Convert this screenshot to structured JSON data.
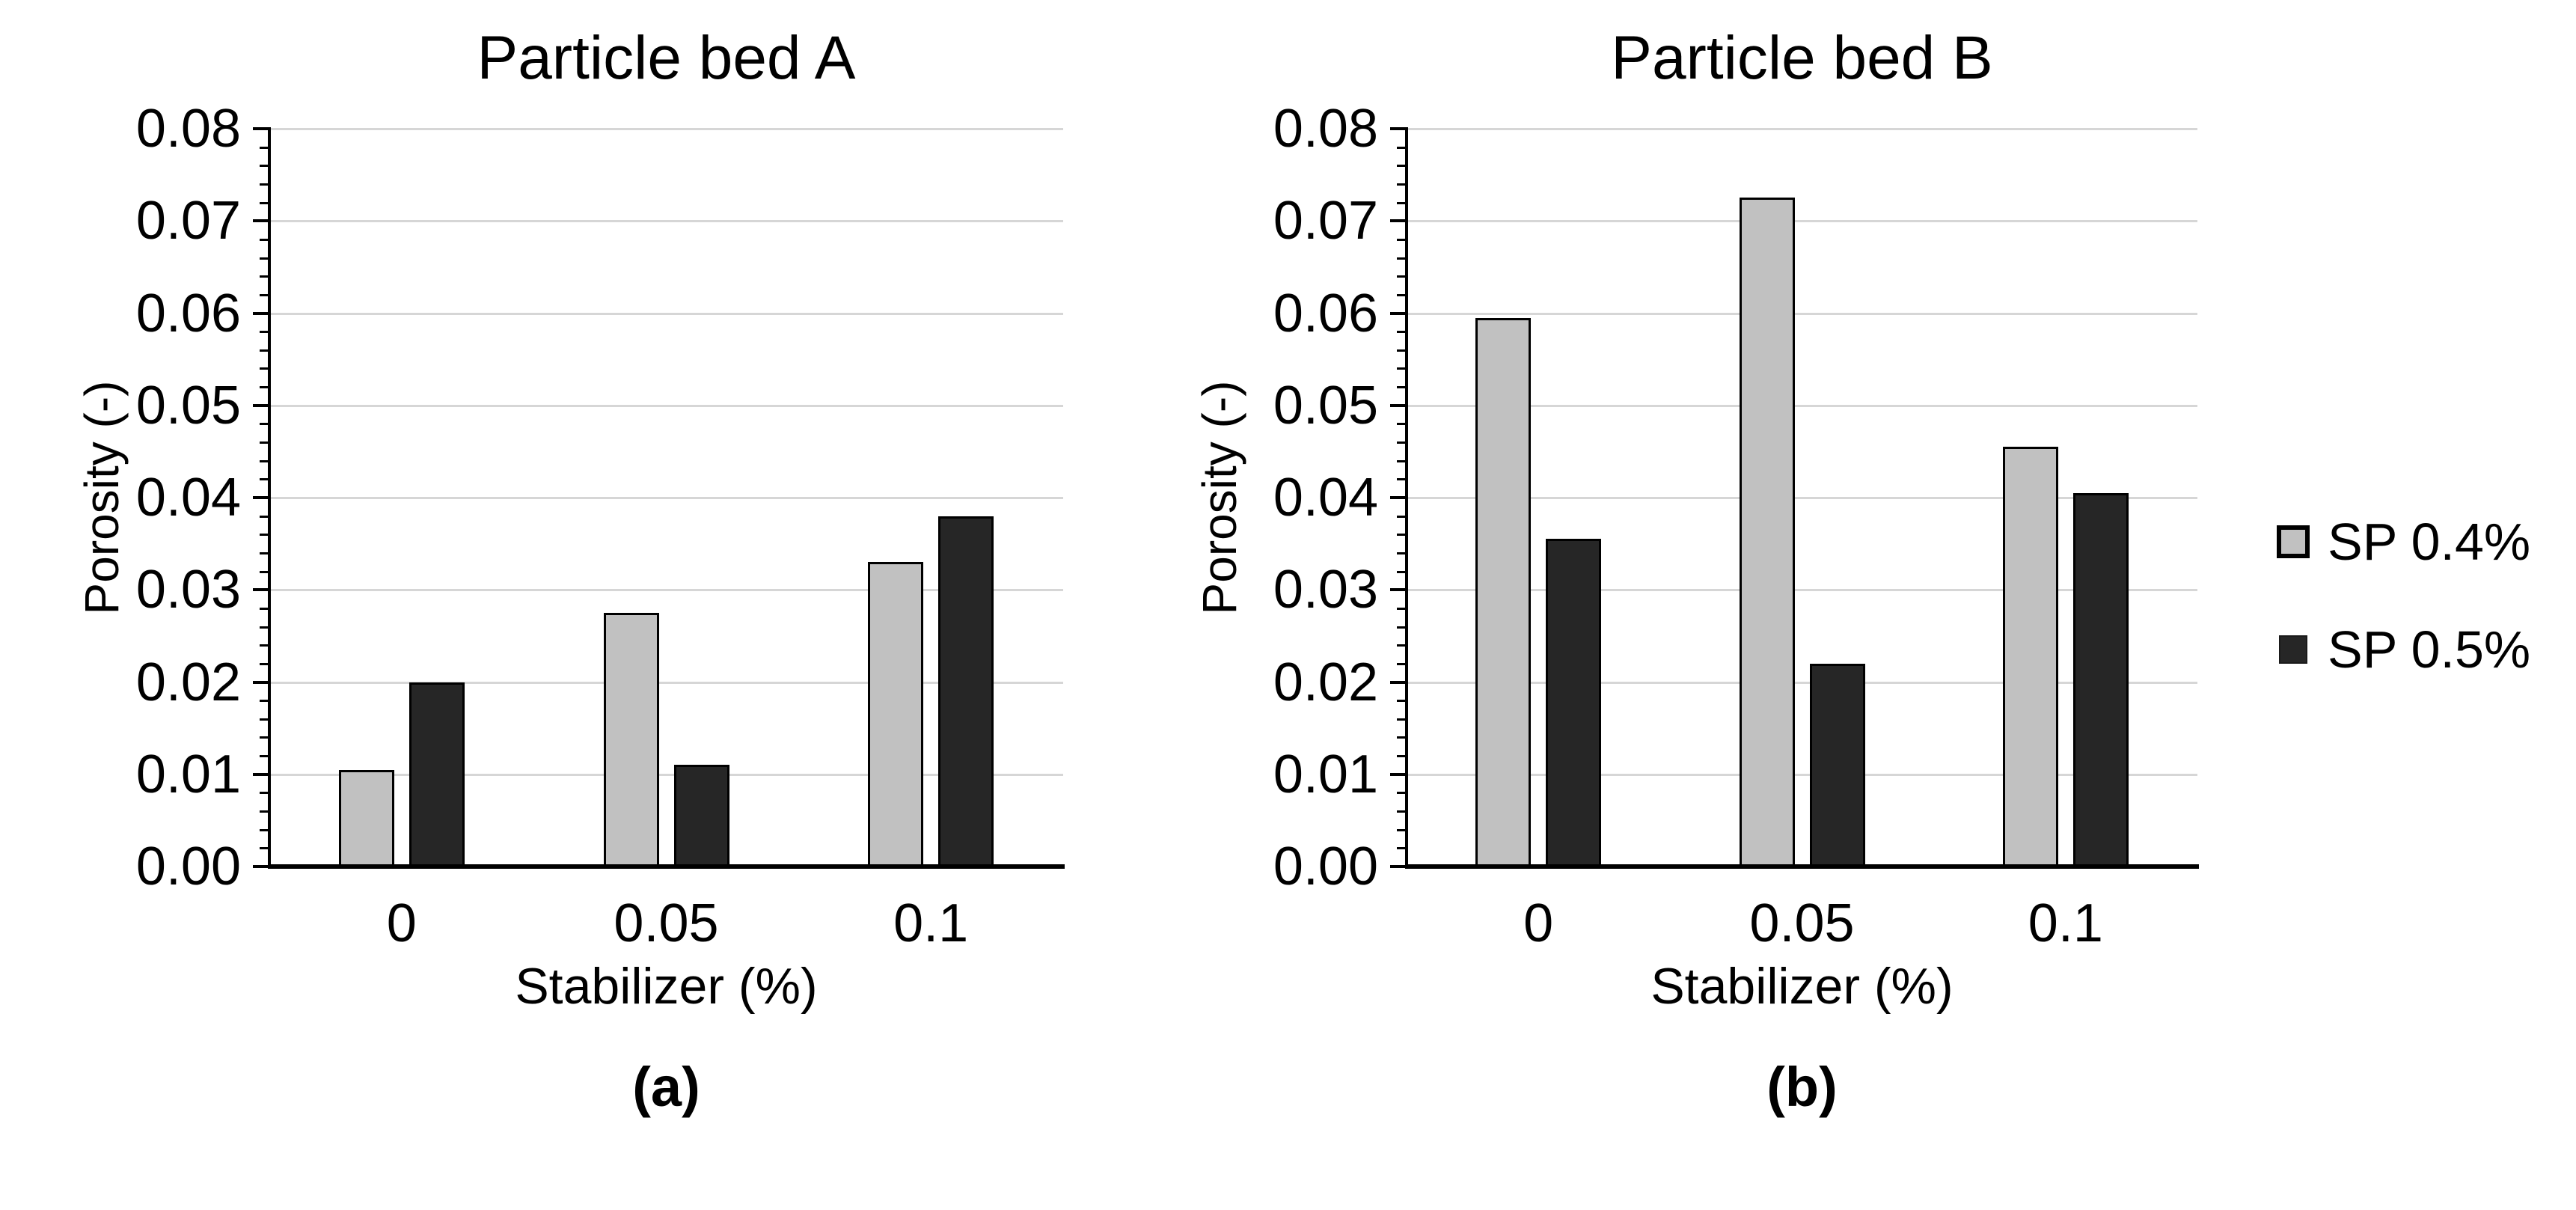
{
  "figure": {
    "background": "#ffffff",
    "legend": {
      "position": "right",
      "items": [
        {
          "label": "SP 0.4%",
          "swatch": "open-square",
          "fill": "#c1c1c1",
          "border": "#000000"
        },
        {
          "label": "SP 0.5%",
          "swatch": "solid-square",
          "fill": "#262626",
          "border": "#000000"
        }
      ]
    },
    "colors": {
      "gridline": "#d6d6d6",
      "axis": "#000000",
      "series_light": "#c1c1c1",
      "series_dark": "#262626"
    }
  },
  "chart_data": [
    {
      "type": "bar",
      "title": "Particle bed A",
      "xlabel": "Stabilizer (%)",
      "ylabel": "Porosity (-)",
      "caption": "(a)",
      "categories": [
        "0",
        "0.05",
        "0.1"
      ],
      "series": [
        {
          "name": "SP 0.4%",
          "color": "#c1c1c1",
          "values": [
            0.0105,
            0.0275,
            0.033
          ]
        },
        {
          "name": "SP 0.5%",
          "color": "#262626",
          "values": [
            0.02,
            0.011,
            0.038
          ]
        }
      ],
      "ylim": [
        0,
        0.08
      ],
      "ytick_step": 0.01,
      "yminor_step": 0.002,
      "ytick_labels": [
        "0.00",
        "0.01",
        "0.02",
        "0.03",
        "0.04",
        "0.05",
        "0.06",
        "0.07",
        "0.08"
      ],
      "grid": true,
      "legend_position": "none"
    },
    {
      "type": "bar",
      "title": "Particle bed B",
      "xlabel": "Stabilizer (%)",
      "ylabel": "Porosity (-)",
      "caption": "(b)",
      "categories": [
        "0",
        "0.05",
        "0.1"
      ],
      "series": [
        {
          "name": "SP 0.4%",
          "color": "#c1c1c1",
          "values": [
            0.0595,
            0.0725,
            0.0455
          ]
        },
        {
          "name": "SP 0.5%",
          "color": "#262626",
          "values": [
            0.0355,
            0.022,
            0.0405
          ]
        }
      ],
      "ylim": [
        0,
        0.08
      ],
      "ytick_step": 0.01,
      "yminor_step": 0.002,
      "ytick_labels": [
        "0.00",
        "0.01",
        "0.02",
        "0.03",
        "0.04",
        "0.05",
        "0.06",
        "0.07",
        "0.08"
      ],
      "grid": true,
      "legend_position": "right"
    }
  ]
}
